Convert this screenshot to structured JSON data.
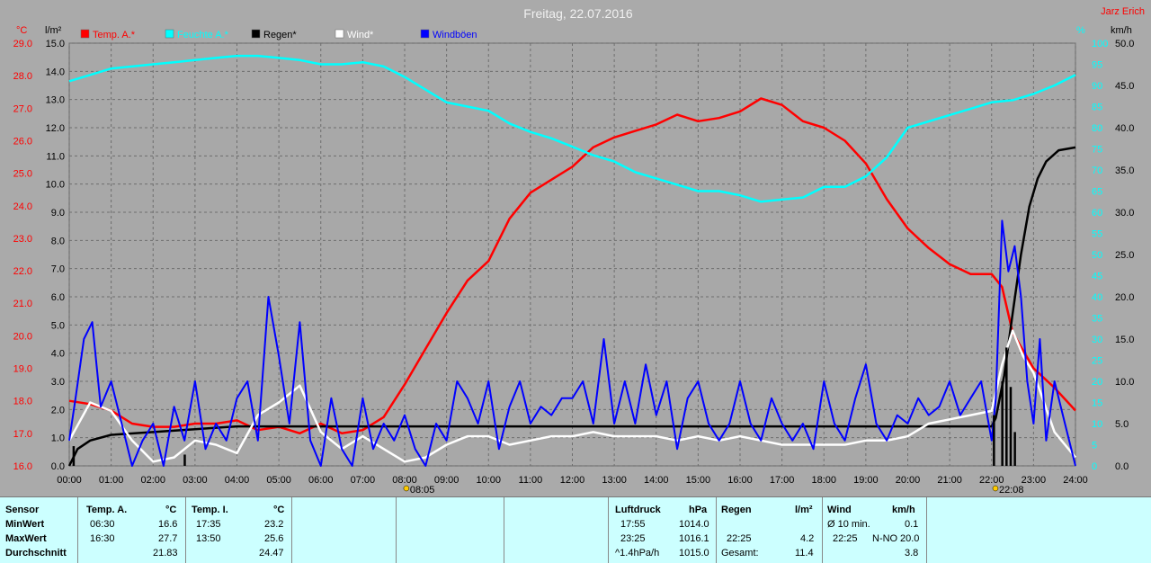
{
  "header": {
    "title": "Freitag, 22.07.2016",
    "author": "Jarz Erich",
    "unit_left_temp": "°C",
    "unit_left_rain": "l/m²",
    "unit_right_hum": "%",
    "unit_right_wind": "km/h"
  },
  "legend": [
    {
      "label": "Temp. A.*",
      "color": "#ff0000"
    },
    {
      "label": "Feuchte A.*",
      "color": "#00ffff"
    },
    {
      "label": "Regen*",
      "color": "#000000"
    },
    {
      "label": "Wind*",
      "color": "#ffffff"
    },
    {
      "label": "Windböen",
      "color": "#0000ff"
    }
  ],
  "axes": {
    "temp_ticks": [
      "29.0",
      "28.0",
      "27.0",
      "26.0",
      "25.0",
      "24.0",
      "23.0",
      "22.0",
      "21.0",
      "20.0",
      "19.0",
      "18.0",
      "17.0",
      "16.0"
    ],
    "rain_ticks": [
      "15.0",
      "14.0",
      "13.0",
      "12.0",
      "11.0",
      "10.0",
      "9.0",
      "8.0",
      "7.0",
      "6.0",
      "5.0",
      "4.0",
      "3.0",
      "2.0",
      "1.0",
      "0.0"
    ],
    "hum_ticks": [
      "100",
      "95",
      "90",
      "85",
      "80",
      "75",
      "70",
      "65",
      "60",
      "55",
      "50",
      "45",
      "40",
      "35",
      "30",
      "25",
      "20",
      "15",
      "10",
      "5",
      "0"
    ],
    "wind_ticks": [
      "50.0",
      "45.0",
      "40.0",
      "35.0",
      "30.0",
      "25.0",
      "20.0",
      "15.0",
      "10.0",
      "5.0",
      "0.0"
    ],
    "x_ticks": [
      "00:00",
      "01:00",
      "02:00",
      "03:00",
      "04:00",
      "05:00",
      "06:00",
      "07:00",
      "08:00",
      "09:00",
      "10:00",
      "11:00",
      "12:00",
      "13:00",
      "14:00",
      "15:00",
      "16:00",
      "17:00",
      "18:00",
      "19:00",
      "20:00",
      "21:00",
      "22:00",
      "23:00",
      "24:00"
    ],
    "sunrise": "08:05",
    "sunset": "22:08"
  },
  "chart_data": {
    "type": "line",
    "title": "Freitag, 22.07.2016",
    "x_unit": "hours",
    "grid": true,
    "legend_position": "top-left",
    "series": [
      {
        "name": "Temp. A.*",
        "axis": "°C",
        "ylim": [
          16.0,
          29.0
        ],
        "color": "#ff0000",
        "x": [
          0,
          0.5,
          1,
          1.5,
          2,
          2.5,
          3,
          3.5,
          4,
          4.5,
          5,
          5.5,
          6,
          6.5,
          7,
          7.5,
          8,
          8.5,
          9,
          9.5,
          10,
          10.5,
          11,
          11.5,
          12,
          12.5,
          13,
          13.5,
          14,
          14.5,
          15,
          15.5,
          16,
          16.5,
          17,
          17.5,
          18,
          18.5,
          19,
          19.5,
          20,
          20.5,
          21,
          21.5,
          22,
          22.25,
          22.5,
          23,
          23.5,
          24
        ],
        "y": [
          18.0,
          17.9,
          17.7,
          17.3,
          17.2,
          17.2,
          17.3,
          17.3,
          17.4,
          17.1,
          17.2,
          17.0,
          17.3,
          17.0,
          17.1,
          17.5,
          18.5,
          19.6,
          20.7,
          21.7,
          22.3,
          23.6,
          24.4,
          24.8,
          25.2,
          25.8,
          26.1,
          26.3,
          26.5,
          26.8,
          26.6,
          26.7,
          26.9,
          27.3,
          27.1,
          26.6,
          26.4,
          26.0,
          25.3,
          24.2,
          23.3,
          22.7,
          22.2,
          21.9,
          21.9,
          21.5,
          20.1,
          19.0,
          18.4,
          17.7
        ]
      },
      {
        "name": "Feuchte A.*",
        "axis": "%",
        "ylim": [
          0,
          100
        ],
        "color": "#00ffff",
        "x": [
          0,
          0.5,
          1,
          1.5,
          2,
          2.5,
          3,
          3.5,
          4,
          4.5,
          5,
          5.5,
          6,
          6.5,
          7,
          7.5,
          8,
          8.5,
          9,
          9.5,
          10,
          10.5,
          11,
          11.5,
          12,
          12.5,
          13,
          13.5,
          14,
          14.5,
          15,
          15.5,
          16,
          16.5,
          17,
          17.5,
          18,
          18.5,
          19,
          19.5,
          20,
          20.5,
          21,
          21.5,
          22,
          22.5,
          23,
          23.5,
          24
        ],
        "y": [
          91,
          92.5,
          94,
          94.5,
          95,
          95.5,
          96,
          96.5,
          97,
          97,
          96.5,
          96,
          95,
          95,
          95.5,
          94.5,
          92,
          89,
          86,
          85,
          84,
          81,
          79,
          77.5,
          75.5,
          73.5,
          72,
          69.5,
          68,
          66.5,
          65,
          65,
          64,
          62.5,
          63,
          63.5,
          66,
          66,
          68.5,
          73,
          80,
          81.5,
          83,
          84.5,
          86,
          86.5,
          88,
          90,
          92.5
        ]
      },
      {
        "name": "Regen*",
        "axis": "l/m²",
        "ylim": [
          0,
          15.0
        ],
        "color": "#000000",
        "x": [
          0,
          0.2,
          0.5,
          1,
          2,
          3,
          4,
          5,
          6,
          7,
          8,
          9,
          10,
          12,
          14,
          16,
          18,
          20,
          21,
          22,
          22.1,
          22.3,
          22.5,
          22.7,
          22.9,
          23.1,
          23.3,
          23.6,
          24
        ],
        "y": [
          0.0,
          0.6,
          0.9,
          1.1,
          1.2,
          1.3,
          1.4,
          1.4,
          1.4,
          1.4,
          1.4,
          1.4,
          1.4,
          1.4,
          1.4,
          1.4,
          1.4,
          1.4,
          1.4,
          1.4,
          1.7,
          3.2,
          5.4,
          7.5,
          9.2,
          10.2,
          10.8,
          11.2,
          11.3
        ]
      },
      {
        "name": "Wind*",
        "axis": "km/h",
        "ylim": [
          0,
          50.0
        ],
        "color": "#ffffff",
        "x": [
          0,
          0.5,
          1,
          1.5,
          2,
          2.5,
          3,
          3.5,
          4,
          4.5,
          5,
          5.5,
          6,
          6.5,
          7,
          7.5,
          8,
          8.5,
          9,
          9.5,
          10,
          10.5,
          11,
          11.5,
          12,
          12.5,
          13,
          13.5,
          14,
          14.5,
          15,
          15.5,
          16,
          16.5,
          17,
          17.5,
          18,
          18.5,
          19,
          19.5,
          20,
          20.5,
          21,
          21.5,
          22,
          22.25,
          22.5,
          22.75,
          23,
          23.5,
          24
        ],
        "y": [
          3,
          7.5,
          6.5,
          3,
          0.5,
          1,
          3,
          2.5,
          1.5,
          6,
          7.5,
          9.5,
          4,
          2,
          3.5,
          2,
          0.5,
          1,
          2.5,
          3.5,
          3.5,
          2.5,
          3,
          3.5,
          3.5,
          4,
          3.5,
          3.5,
          3.5,
          3,
          3.5,
          3,
          3.5,
          3,
          2.5,
          2.5,
          2.5,
          2.5,
          3,
          3,
          3.5,
          5,
          5.5,
          6,
          6.5,
          12,
          16,
          13,
          11,
          4,
          1
        ]
      },
      {
        "name": "Windböen",
        "axis": "km/h",
        "ylim": [
          0,
          50.0
        ],
        "color": "#0000ff",
        "x": [
          0,
          0.15,
          0.35,
          0.55,
          0.75,
          1,
          1.25,
          1.5,
          1.75,
          2,
          2.25,
          2.5,
          2.75,
          3,
          3.25,
          3.5,
          3.75,
          4,
          4.25,
          4.5,
          4.75,
          5,
          5.25,
          5.5,
          5.75,
          6,
          6.25,
          6.5,
          6.75,
          7,
          7.25,
          7.5,
          7.75,
          8,
          8.25,
          8.5,
          8.75,
          9,
          9.25,
          9.5,
          9.75,
          10,
          10.25,
          10.5,
          10.75,
          11,
          11.25,
          11.5,
          11.75,
          12,
          12.25,
          12.5,
          12.75,
          13,
          13.25,
          13.5,
          13.75,
          14,
          14.25,
          14.5,
          14.75,
          15,
          15.25,
          15.5,
          15.75,
          16,
          16.25,
          16.5,
          16.75,
          17,
          17.25,
          17.5,
          17.75,
          18,
          18.25,
          18.5,
          18.75,
          19,
          19.25,
          19.5,
          19.75,
          20,
          20.25,
          20.5,
          20.75,
          21,
          21.25,
          21.5,
          21.75,
          22,
          22.1,
          22.25,
          22.4,
          22.55,
          22.7,
          22.85,
          23,
          23.15,
          23.3,
          23.5,
          23.75,
          24
        ],
        "y": [
          3,
          8,
          15,
          17,
          7,
          10,
          5,
          0,
          3,
          5,
          0,
          7,
          3,
          10,
          2,
          5,
          3,
          8,
          10,
          3,
          20,
          13,
          5,
          17,
          3,
          0,
          8,
          2,
          0,
          8,
          2,
          5,
          3,
          6,
          2,
          0,
          5,
          3,
          10,
          8,
          5,
          10,
          2,
          7,
          10,
          5,
          7,
          6,
          8,
          8,
          10,
          5,
          15,
          5,
          10,
          5,
          12,
          6,
          10,
          2,
          8,
          10,
          5,
          3,
          5,
          10,
          5,
          3,
          8,
          5,
          3,
          5,
          2,
          10,
          5,
          3,
          8,
          12,
          5,
          3,
          6,
          5,
          8,
          6,
          7,
          10,
          6,
          8,
          10,
          3,
          8,
          29,
          23,
          26,
          20,
          10,
          5,
          15,
          3,
          10,
          5,
          0
        ]
      }
    ]
  },
  "stats": {
    "sensor": {
      "header": "Sensor",
      "rows": [
        "MinWert",
        "MaxWert",
        "Durchschnitt"
      ]
    },
    "temp_a": {
      "header": "Temp. A.",
      "unit": "°C",
      "min_time": "06:30",
      "min_val": "16.6",
      "max_time": "16:30",
      "max_val": "27.7",
      "avg": "21.83"
    },
    "temp_i": {
      "header": "Temp. I.",
      "unit": "°C",
      "min_time": "17:35",
      "min_val": "23.2",
      "max_time": "13:50",
      "max_val": "25.6",
      "avg": "24.47"
    },
    "pressure": {
      "header": "Luftdruck",
      "unit": "hPa",
      "min_time": "17:55",
      "min_val": "1014.0",
      "max_time": "23:25",
      "max_val": "1016.1",
      "trend": "^1.4hPa/h",
      "trend_val": "1015.0"
    },
    "rain": {
      "header": "Regen",
      "unit": "l/m²",
      "time": "22:25",
      "val": "4.2",
      "total_label": "Gesamt:",
      "total_val": "11.4"
    },
    "wind": {
      "header": "Wind",
      "unit": "km/h",
      "avg10_label": "Ø 10 min.",
      "avg10_val": "0.1",
      "max_time": "22:25",
      "max_dir": "N-NO",
      "max_val": "20.0",
      "avg_val": "3.8"
    }
  }
}
